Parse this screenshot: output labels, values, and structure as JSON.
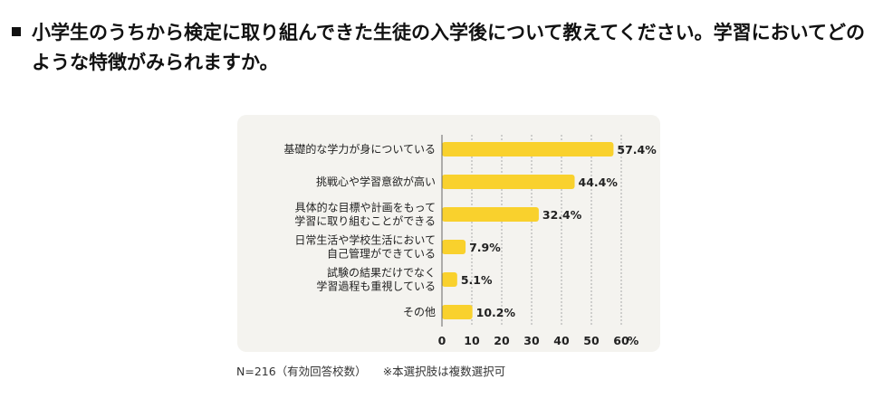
{
  "question": {
    "text": "小学生のうちから検定に取り組んできた生徒の入学後について教えてください。学習においてどのような特徴がみられますか。"
  },
  "chart_data": {
    "type": "bar",
    "orientation": "horizontal",
    "categories": [
      [
        "基礎的な学力が身についている"
      ],
      [
        "挑戦心や学習意欲が高い"
      ],
      [
        "具体的な目標や計画をもって",
        "学習に取り組むことができる"
      ],
      [
        "日常生活や学校生活において",
        "自己管理ができている"
      ],
      [
        "試験の結果だけでなく",
        "学習過程も重視している"
      ],
      [
        "その他"
      ]
    ],
    "values": [
      57.4,
      44.4,
      32.4,
      7.9,
      5.1,
      10.2
    ],
    "value_labels": [
      "57.4%",
      "44.4%",
      "32.4%",
      "7.9%",
      "5.1%",
      "10.2%"
    ],
    "xlim": [
      0,
      60
    ],
    "x_ticks": [
      "0",
      "10",
      "20",
      "30",
      "40",
      "50",
      "60"
    ],
    "x_unit": "%",
    "grid": "vertical dashed",
    "bar_color": "#f9d12d"
  },
  "footnote": {
    "sample": "N=216（有効回答校数）",
    "remark": "※本選択肢は複数選択可"
  }
}
